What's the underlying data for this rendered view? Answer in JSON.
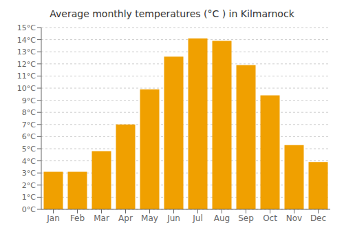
{
  "chart_data": {
    "type": "bar",
    "title": "Average monthly temperatures (°C ) in Kilmarnock",
    "categories": [
      "Jan",
      "Feb",
      "Mar",
      "Apr",
      "May",
      "Jun",
      "Jul",
      "Aug",
      "Sep",
      "Oct",
      "Nov",
      "Dec"
    ],
    "values": [
      3.1,
      3.1,
      4.8,
      7.0,
      9.9,
      12.6,
      14.1,
      13.9,
      11.9,
      9.4,
      5.3,
      3.9
    ],
    "color": "#F0A000",
    "ylim": [
      0,
      15
    ],
    "yticks": [
      {
        "value": 0,
        "label": "0°C"
      },
      {
        "value": 1,
        "label": "1°C"
      },
      {
        "value": 2,
        "label": "2°C"
      },
      {
        "value": 3,
        "label": "3°C"
      },
      {
        "value": 4,
        "label": "4°C"
      },
      {
        "value": 5,
        "label": "5°C"
      },
      {
        "value": 6,
        "label": "6°C"
      },
      {
        "value": 7,
        "label": "7°C"
      },
      {
        "value": 8,
        "label": "8°C"
      },
      {
        "value": 9,
        "label": "9°C"
      },
      {
        "value": 10,
        "label": "10°C"
      },
      {
        "value": 11,
        "label": "11°C"
      },
      {
        "value": 12,
        "label": "12°C"
      },
      {
        "value": 13,
        "label": "13°C"
      },
      {
        "value": 14,
        "label": "14°C"
      },
      {
        "value": 15,
        "label": "15°C"
      }
    ],
    "grid": true
  }
}
